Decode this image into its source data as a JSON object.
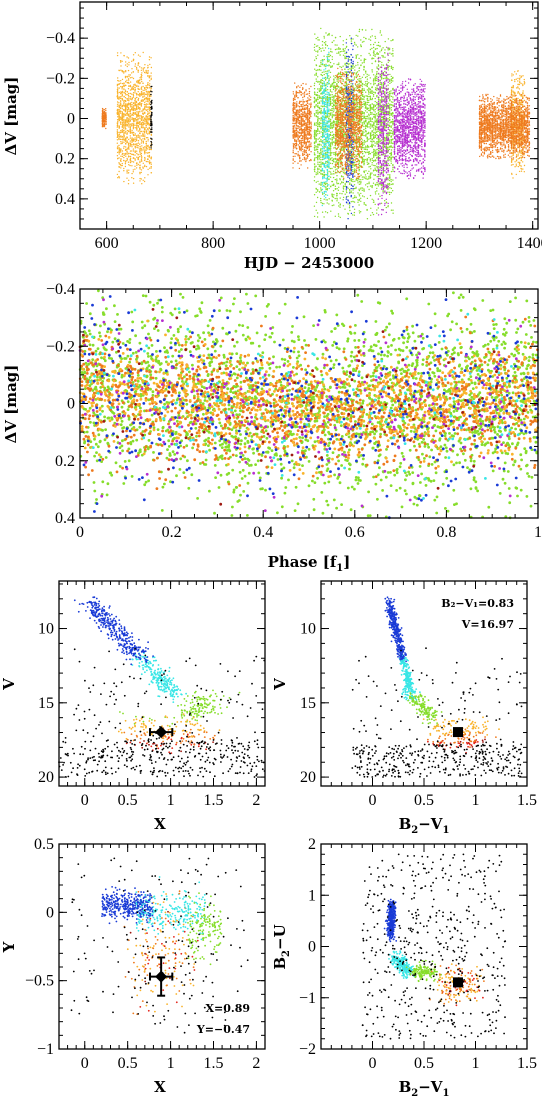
{
  "colors": {
    "orange_yellow": "#f9b32b",
    "orange": "#ee7a1e",
    "light_green": "#86dd2a",
    "cyan": "#39e6e6",
    "blue": "#1a3bd6",
    "purple": "#b62fd0",
    "red": "#e3241a",
    "dark_red": "#9e1912",
    "black": "#000000"
  },
  "chart_data": [
    {
      "type": "scatter",
      "id": "lightcurve",
      "xlabel": "HJD − 2453000",
      "ylabel": "ΔV [mag]",
      "xlim": [
        550,
        1410
      ],
      "ylim": [
        0.55,
        -0.58
      ],
      "xticks": [
        600,
        800,
        1000,
        1200,
        1400
      ],
      "yticks": [
        -0.4,
        -0.2,
        0,
        0.2,
        0.4
      ],
      "y_inverted": true,
      "observing_runs": [
        {
          "x_from": 620,
          "x_to": 685,
          "y_from": -0.33,
          "y_to": 0.33,
          "color": "orange_yellow"
        },
        {
          "x_from": 683,
          "x_to": 686,
          "y_from": -0.2,
          "y_to": 0.2,
          "color": "black"
        },
        {
          "x_from": 592,
          "x_to": 600,
          "y_from": -0.05,
          "y_to": 0.05,
          "color": "orange"
        },
        {
          "x_from": 950,
          "x_to": 985,
          "y_from": -0.18,
          "y_to": 0.25,
          "color": "orange"
        },
        {
          "x_from": 990,
          "x_to": 1140,
          "y_from": -0.45,
          "y_to": 0.5,
          "color": "light_green"
        },
        {
          "x_from": 1005,
          "x_to": 1020,
          "y_from": -0.35,
          "y_to": 0.45,
          "color": "cyan"
        },
        {
          "x_from": 1050,
          "x_to": 1065,
          "y_from": -0.4,
          "y_to": 0.5,
          "color": "blue"
        },
        {
          "x_from": 1110,
          "x_to": 1130,
          "y_from": -0.38,
          "y_to": 0.48,
          "color": "purple"
        },
        {
          "x_from": 1140,
          "x_to": 1200,
          "y_from": -0.2,
          "y_to": 0.3,
          "color": "purple"
        },
        {
          "x_from": 1030,
          "x_to": 1080,
          "y_from": -0.25,
          "y_to": 0.3,
          "color": "orange"
        },
        {
          "x_from": 1360,
          "x_to": 1385,
          "y_from": -0.25,
          "y_to": 0.3,
          "color": "orange_yellow"
        },
        {
          "x_from": 1300,
          "x_to": 1395,
          "y_from": -0.12,
          "y_to": 0.2,
          "color": "orange"
        }
      ]
    },
    {
      "type": "scatter",
      "id": "phase",
      "xlabel": "Phase [f₁]",
      "ylabel": "ΔV [mag]",
      "xlim": [
        0,
        1
      ],
      "ylim": [
        0.4,
        -0.4
      ],
      "xticks": [
        0,
        0.2,
        0.4,
        0.6,
        0.8,
        1
      ],
      "yticks": [
        -0.4,
        -0.2,
        0,
        0.2,
        0.4
      ],
      "y_inverted": true,
      "point_groups": [
        {
          "color": "light_green",
          "count": 2600,
          "y_spread": 0.17
        },
        {
          "color": "orange",
          "count": 1300,
          "y_spread": 0.1
        },
        {
          "color": "orange_yellow",
          "count": 900,
          "y_spread": 0.09
        },
        {
          "color": "blue",
          "count": 450,
          "y_spread": 0.16
        },
        {
          "color": "purple",
          "count": 250,
          "y_spread": 0.14
        },
        {
          "color": "cyan",
          "count": 150,
          "y_spread": 0.14
        },
        {
          "color": "dark_red",
          "count": 120,
          "y_spread": 0.12
        }
      ],
      "mean_amplitude": 0.03
    },
    {
      "type": "scatter",
      "id": "cmd_x_v",
      "xlabel": "X",
      "ylabel": "V",
      "xlim": [
        -0.3,
        2.1
      ],
      "ylim": [
        20.6,
        6.8
      ],
      "xticks": [
        0,
        0.5,
        1,
        1.5,
        2
      ],
      "yticks": [
        10,
        15,
        20
      ],
      "y_inverted": true,
      "highlight": {
        "x": 0.89,
        "y": 16.97,
        "xerr": 0.13,
        "yerr": 0.0
      }
    },
    {
      "type": "scatter",
      "id": "cmd_bv_v",
      "xlabel": "B₂−V₁",
      "ylabel": "V",
      "xlim": [
        -0.5,
        1.5
      ],
      "ylim": [
        20.6,
        6.8
      ],
      "xticks": [
        0,
        0.5,
        1,
        1.5
      ],
      "yticks": [
        10,
        15,
        20
      ],
      "y_inverted": true,
      "highlight": {
        "x": 0.83,
        "y": 16.97
      },
      "annotations": [
        "B₂−V₁=0.83",
        "V=16.97"
      ]
    },
    {
      "type": "scatter",
      "id": "xy",
      "xlabel": "X",
      "ylabel": "Y",
      "xlim": [
        -0.3,
        2.1
      ],
      "ylim": [
        -1,
        0.5
      ],
      "xticks": [
        0,
        0.5,
        1,
        1.5,
        2
      ],
      "yticks": [
        -1,
        -0.5,
        0,
        0.5
      ],
      "y_inverted": false,
      "highlight": {
        "x": 0.89,
        "y": -0.47,
        "xerr": 0.13,
        "yerr": 0.14
      },
      "annotations": [
        "X=0.89",
        "Y=−0.47"
      ]
    },
    {
      "type": "scatter",
      "id": "ccd",
      "xlabel": "B₂−V₁",
      "ylabel": "B₂−U",
      "xlim": [
        -0.5,
        1.5
      ],
      "ylim": [
        -2,
        2
      ],
      "xticks": [
        0,
        0.5,
        1,
        1.5
      ],
      "yticks": [
        -2,
        -1,
        0,
        1,
        2
      ],
      "y_inverted": false,
      "highlight": {
        "x": 0.83,
        "y": -0.7
      }
    }
  ],
  "labels": {
    "lc_xlabel": "HJD − 2453000",
    "lc_ylabel": "ΔV [mag]",
    "ph_xlabel": "Phase [f",
    "ph_xsub": "1",
    "ph_ylabel": "ΔV [mag]",
    "p3_xlabel": "X",
    "p3_ylabel": "V",
    "p4_xlabel": "B",
    "p4_ylabel": "V",
    "p5_xlabel": "X",
    "p5_ylabel": "Y",
    "p6_xlabel": "B",
    "p6_ylabel": "B",
    "ann_bv": "B₂−V₁=0.83",
    "ann_v": "V=16.97",
    "ann_x": "X=0.89",
    "ann_y": "Y=−0.47"
  }
}
